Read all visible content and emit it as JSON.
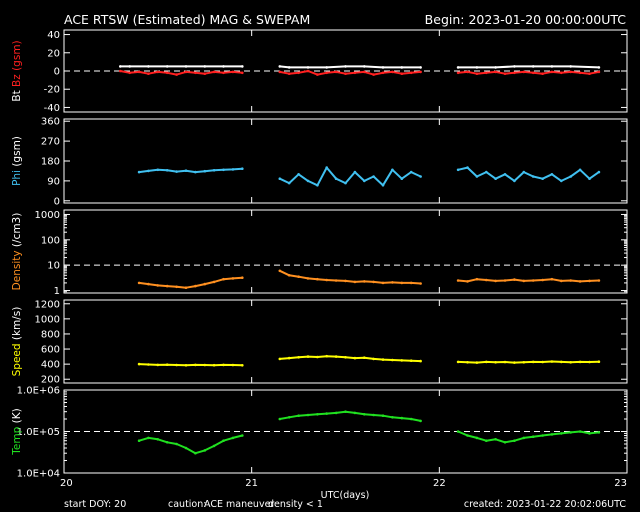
{
  "header": {
    "title": "ACE RTSW (Estimated) MAG & SWEPAM",
    "begin": "Begin: 2023-01-20 00:00:00UTC"
  },
  "footer": {
    "start_doy": "start DOY:  20",
    "caution_label": "caution:",
    "caution_maneuver": "ACE maneuver",
    "caution_density": "density < 1",
    "created": "created: 2023-01-22 20:02:06UTC"
  },
  "colors": {
    "background": "#000000",
    "axes": "#ffffff",
    "bt": "#ffffff",
    "bz": "#ff2020",
    "phi": "#40c0f0",
    "density": "#ff9020",
    "speed": "#ffff00",
    "temp": "#20e020",
    "maneuver": "#ffff00",
    "density_caution": "#ff9020"
  },
  "chart_data": {
    "type": "scatter",
    "xlabel": "UTC(days)",
    "xlim": [
      20,
      23
    ],
    "x_ticks": [
      "20",
      "21",
      "22",
      "23"
    ],
    "panels": [
      {
        "id": "mag",
        "ylabel_parts": [
          {
            "text": "Bt",
            "color": "#ffffff"
          },
          {
            "text": "Bz",
            "color": "#ff2020"
          },
          {
            "text": "(gsm)",
            "color": "#ff2020"
          }
        ],
        "ylim": [
          -45,
          45
        ],
        "ticks": [
          {
            "v": 40,
            "label": "40"
          },
          {
            "v": 20,
            "label": "20"
          },
          {
            "v": 0,
            "label": "0"
          },
          {
            "v": -20,
            "label": "-20"
          },
          {
            "v": -40,
            "label": "-40"
          }
        ],
        "ref_lines": [
          0
        ],
        "series": [
          {
            "key": "bt",
            "color": "#ffffff",
            "style": "line",
            "segments": [
              {
                "x": [
                  20.3,
                  20.35,
                  20.45,
                  20.55,
                  20.65,
                  20.75,
                  20.85,
                  20.95
                ],
                "y": [
                  5,
                  5,
                  5,
                  5,
                  5,
                  5,
                  5,
                  5
                ]
              },
              {
                "x": [
                  21.15,
                  21.2,
                  21.3,
                  21.4,
                  21.5,
                  21.6,
                  21.7,
                  21.8,
                  21.9
                ],
                "y": [
                  5,
                  4,
                  4,
                  4,
                  5,
                  5,
                  4,
                  4,
                  4
                ]
              },
              {
                "x": [
                  22.1,
                  22.2,
                  22.3,
                  22.4,
                  22.5,
                  22.6,
                  22.7,
                  22.85
                ],
                "y": [
                  4,
                  4,
                  4,
                  5,
                  5,
                  5,
                  5,
                  4
                ]
              }
            ]
          },
          {
            "key": "bz",
            "color": "#ff2020",
            "style": "line",
            "segments": [
              {
                "x": [
                  20.3,
                  20.35,
                  20.4,
                  20.45,
                  20.5,
                  20.55,
                  20.6,
                  20.65,
                  20.7,
                  20.75,
                  20.8,
                  20.85,
                  20.9,
                  20.95
                ],
                "y": [
                  0,
                  -2,
                  -1,
                  -3,
                  -1,
                  -2,
                  -4,
                  -1,
                  -2,
                  -3,
                  -1,
                  -2,
                  -1,
                  -2
                ]
              },
              {
                "x": [
                  21.15,
                  21.2,
                  21.25,
                  21.3,
                  21.35,
                  21.4,
                  21.45,
                  21.5,
                  21.55,
                  21.6,
                  21.65,
                  21.7,
                  21.75,
                  21.8,
                  21.85,
                  21.9
                ],
                "y": [
                  -1,
                  -3,
                  -2,
                  0,
                  -4,
                  -2,
                  -1,
                  -3,
                  -2,
                  -1,
                  -4,
                  -2,
                  -1,
                  -3,
                  -2,
                  -1
                ]
              },
              {
                "x": [
                  22.1,
                  22.15,
                  22.2,
                  22.25,
                  22.3,
                  22.35,
                  22.4,
                  22.45,
                  22.5,
                  22.55,
                  22.6,
                  22.65,
                  22.7,
                  22.75,
                  22.8,
                  22.85
                ],
                "y": [
                  -2,
                  -1,
                  -3,
                  -2,
                  -1,
                  -3,
                  -2,
                  -1,
                  -2,
                  -3,
                  -1,
                  -2,
                  -1,
                  -2,
                  -3,
                  -1
                ]
              }
            ]
          }
        ]
      },
      {
        "id": "phi",
        "ylabel_parts": [
          {
            "text": "Phi",
            "color": "#40c0f0"
          },
          {
            "text": "(gsm)",
            "color": "#ffffff"
          }
        ],
        "ylim": [
          -10,
          370
        ],
        "ticks": [
          {
            "v": 360,
            "label": "360"
          },
          {
            "v": 270,
            "label": "270"
          },
          {
            "v": 180,
            "label": "180"
          },
          {
            "v": 90,
            "label": "90"
          },
          {
            "v": 0,
            "label": "0"
          }
        ],
        "ref_lines": [],
        "series": [
          {
            "key": "phi",
            "color": "#40c0f0",
            "style": "line",
            "segments": [
              {
                "x": [
                  20.4,
                  20.45,
                  20.5,
                  20.55,
                  20.6,
                  20.65,
                  20.7,
                  20.75,
                  20.8,
                  20.85,
                  20.9,
                  20.95
                ],
                "y": [
                  130,
                  135,
                  140,
                  138,
                  132,
                  136,
                  130,
                  134,
                  138,
                  140,
                  142,
                  145
                ]
              },
              {
                "x": [
                  21.15,
                  21.2,
                  21.25,
                  21.3,
                  21.35,
                  21.4,
                  21.45,
                  21.5,
                  21.55,
                  21.6,
                  21.65,
                  21.7,
                  21.75,
                  21.8,
                  21.85,
                  21.9
                ],
                "y": [
                  100,
                  80,
                  120,
                  90,
                  70,
                  150,
                  100,
                  80,
                  130,
                  90,
                  110,
                  70,
                  140,
                  100,
                  130,
                  110
                ]
              },
              {
                "x": [
                  22.1,
                  22.15,
                  22.2,
                  22.25,
                  22.3,
                  22.35,
                  22.4,
                  22.45,
                  22.5,
                  22.55,
                  22.6,
                  22.65,
                  22.7,
                  22.75,
                  22.8,
                  22.85
                ],
                "y": [
                  140,
                  150,
                  110,
                  130,
                  100,
                  120,
                  90,
                  130,
                  110,
                  100,
                  120,
                  90,
                  110,
                  140,
                  100,
                  130
                ]
              }
            ]
          }
        ]
      },
      {
        "id": "density",
        "ylabel_parts": [
          {
            "text": "Density",
            "color": "#ff9020"
          },
          {
            "text": "(/cm3)",
            "color": "#ffffff"
          }
        ],
        "scale": "log",
        "ylim": [
          0.8,
          1500
        ],
        "ticks": [
          {
            "v": 1000,
            "label": "1000"
          },
          {
            "v": 100,
            "label": "100"
          },
          {
            "v": 10,
            "label": "10"
          },
          {
            "v": 1,
            "label": "1"
          }
        ],
        "ref_lines": [
          10
        ],
        "series": [
          {
            "key": "density",
            "color": "#ff9020",
            "style": "line",
            "segments": [
              {
                "x": [
                  20.4,
                  20.45,
                  20.5,
                  20.55,
                  20.6,
                  20.65,
                  20.7,
                  20.75,
                  20.8,
                  20.85,
                  20.9,
                  20.95
                ],
                "y": [
                  2.0,
                  1.8,
                  1.6,
                  1.5,
                  1.4,
                  1.3,
                  1.5,
                  1.8,
                  2.2,
                  2.8,
                  3.0,
                  3.2
                ]
              },
              {
                "x": [
                  21.15,
                  21.2,
                  21.25,
                  21.3,
                  21.35,
                  21.4,
                  21.45,
                  21.5,
                  21.55,
                  21.6,
                  21.65,
                  21.7,
                  21.75,
                  21.8,
                  21.85,
                  21.9
                ],
                "y": [
                  6.0,
                  4.0,
                  3.5,
                  3.0,
                  2.8,
                  2.6,
                  2.5,
                  2.4,
                  2.2,
                  2.3,
                  2.2,
                  2.0,
                  2.1,
                  2.0,
                  2.0,
                  1.9
                ]
              },
              {
                "x": [
                  22.1,
                  22.15,
                  22.2,
                  22.25,
                  22.3,
                  22.35,
                  22.4,
                  22.45,
                  22.5,
                  22.55,
                  22.6,
                  22.65,
                  22.7,
                  22.75,
                  22.8,
                  22.85
                ],
                "y": [
                  2.5,
                  2.3,
                  2.8,
                  2.6,
                  2.4,
                  2.5,
                  2.7,
                  2.4,
                  2.5,
                  2.6,
                  2.8,
                  2.4,
                  2.5,
                  2.3,
                  2.4,
                  2.5
                ]
              }
            ]
          }
        ]
      },
      {
        "id": "speed",
        "ylabel_parts": [
          {
            "text": "Speed",
            "color": "#ffff00"
          },
          {
            "text": "(km/s)",
            "color": "#ffffff"
          }
        ],
        "ylim": [
          150,
          1250
        ],
        "ticks": [
          {
            "v": 1200,
            "label": "1200"
          },
          {
            "v": 1000,
            "label": "1000"
          },
          {
            "v": 800,
            "label": "800"
          },
          {
            "v": 600,
            "label": "600"
          },
          {
            "v": 400,
            "label": "400"
          },
          {
            "v": 200,
            "label": "200"
          }
        ],
        "ref_lines": [],
        "series": [
          {
            "key": "speed",
            "color": "#ffff00",
            "style": "line",
            "segments": [
              {
                "x": [
                  20.4,
                  20.45,
                  20.5,
                  20.55,
                  20.6,
                  20.65,
                  20.7,
                  20.75,
                  20.8,
                  20.85,
                  20.9,
                  20.95
                ],
                "y": [
                  400,
                  395,
                  390,
                  392,
                  388,
                  385,
                  390,
                  388,
                  386,
                  390,
                  388,
                  385
                ]
              },
              {
                "x": [
                  21.15,
                  21.2,
                  21.25,
                  21.3,
                  21.35,
                  21.4,
                  21.45,
                  21.5,
                  21.55,
                  21.6,
                  21.65,
                  21.7,
                  21.75,
                  21.8,
                  21.85,
                  21.9
                ],
                "y": [
                  470,
                  480,
                  490,
                  500,
                  495,
                  505,
                  500,
                  490,
                  480,
                  485,
                  470,
                  460,
                  455,
                  450,
                  445,
                  440
                ]
              },
              {
                "x": [
                  22.1,
                  22.15,
                  22.2,
                  22.25,
                  22.3,
                  22.35,
                  22.4,
                  22.45,
                  22.5,
                  22.55,
                  22.6,
                  22.65,
                  22.7,
                  22.75,
                  22.8,
                  22.85
                ],
                "y": [
                  430,
                  425,
                  420,
                  430,
                  425,
                  428,
                  420,
                  425,
                  430,
                  428,
                  435,
                  430,
                  425,
                  430,
                  428,
                  432
                ]
              }
            ]
          }
        ]
      },
      {
        "id": "temp",
        "ylabel_parts": [
          {
            "text": "Temp",
            "color": "#20e020"
          },
          {
            "text": "(K)",
            "color": "#ffffff"
          }
        ],
        "scale": "log",
        "ylim": [
          10000,
          1000000
        ],
        "ticks": [
          {
            "v": 1000000,
            "label": "1.0E+06"
          },
          {
            "v": 100000,
            "label": "1.0E+05"
          },
          {
            "v": 10000,
            "label": "1.0E+04"
          }
        ],
        "ref_lines": [
          100000
        ],
        "series": [
          {
            "key": "temp",
            "color": "#20e020",
            "style": "line",
            "segments": [
              {
                "x": [
                  20.4,
                  20.45,
                  20.5,
                  20.55,
                  20.6,
                  20.65,
                  20.7,
                  20.75,
                  20.8,
                  20.85,
                  20.9,
                  20.95
                ],
                "y": [
                  60000,
                  70000,
                  65000,
                  55000,
                  50000,
                  40000,
                  30000,
                  35000,
                  45000,
                  60000,
                  70000,
                  80000
                ]
              },
              {
                "x": [
                  21.15,
                  21.2,
                  21.25,
                  21.3,
                  21.35,
                  21.4,
                  21.45,
                  21.5,
                  21.55,
                  21.6,
                  21.65,
                  21.7,
                  21.75,
                  21.8,
                  21.85,
                  21.9
                ],
                "y": [
                  200000,
                  220000,
                  240000,
                  250000,
                  260000,
                  270000,
                  280000,
                  300000,
                  280000,
                  260000,
                  250000,
                  240000,
                  220000,
                  210000,
                  200000,
                  180000
                ]
              },
              {
                "x": [
                  22.1,
                  22.15,
                  22.2,
                  22.25,
                  22.3,
                  22.35,
                  22.4,
                  22.45,
                  22.5,
                  22.55,
                  22.6,
                  22.65,
                  22.7,
                  22.75,
                  22.8,
                  22.85
                ],
                "y": [
                  100000,
                  80000,
                  70000,
                  60000,
                  65000,
                  55000,
                  60000,
                  70000,
                  75000,
                  80000,
                  85000,
                  90000,
                  95000,
                  100000,
                  90000,
                  95000
                ]
              }
            ]
          }
        ]
      }
    ]
  }
}
